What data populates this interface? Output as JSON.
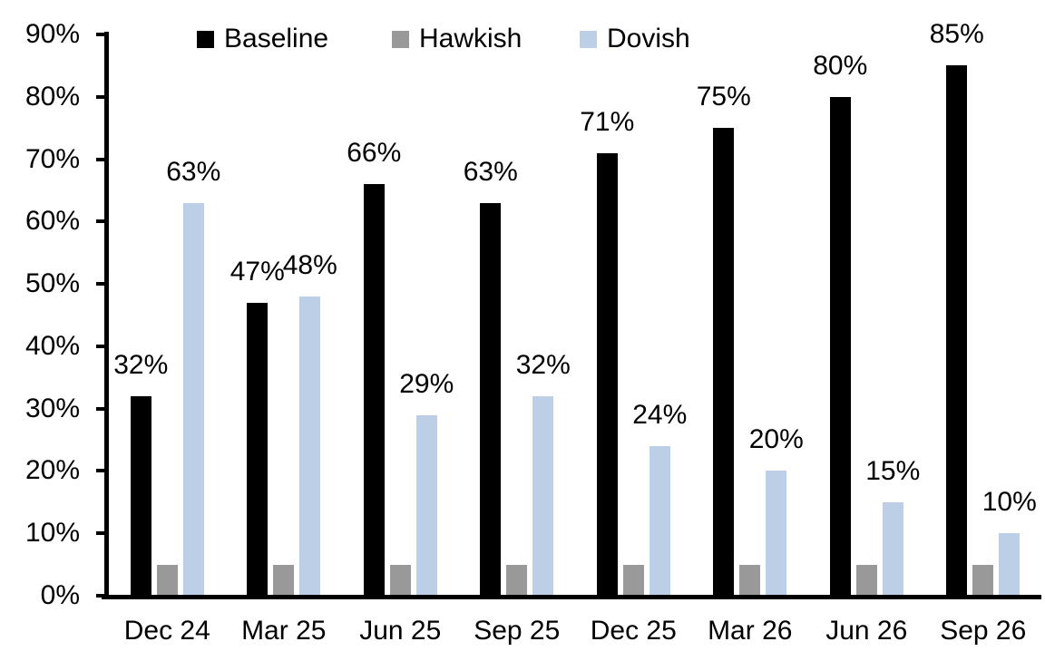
{
  "chart_data": {
    "type": "bar",
    "title": "",
    "xlabel": "",
    "ylabel": "",
    "categories": [
      "Dec 24",
      "Mar 25",
      "Jun 25",
      "Sep 25",
      "Dec 25",
      "Mar 26",
      "Jun 26",
      "Sep 26"
    ],
    "series": [
      {
        "name": "Baseline",
        "color": "#000000",
        "values": [
          32,
          47,
          66,
          63,
          71,
          75,
          80,
          85
        ],
        "data_labels": [
          "32%",
          "47%",
          "66%",
          "63%",
          "71%",
          "75%",
          "80%",
          "85%"
        ]
      },
      {
        "name": "Hawkish",
        "color": "#999999",
        "values": [
          5,
          5,
          5,
          5,
          5,
          5,
          5,
          5
        ],
        "data_labels": null
      },
      {
        "name": "Dovish",
        "color": "#BCCFE7",
        "values": [
          63,
          48,
          29,
          32,
          24,
          20,
          15,
          10
        ],
        "data_labels": [
          "63%",
          "48%",
          "29%",
          "32%",
          "24%",
          "20%",
          "15%",
          "10%"
        ]
      }
    ],
    "ylim": [
      0,
      90
    ],
    "ytick_step": 10,
    "ytick_labels": [
      "0%",
      "10%",
      "20%",
      "30%",
      "40%",
      "50%",
      "60%",
      "70%",
      "80%",
      "90%"
    ],
    "legend_position": "top",
    "grid": false,
    "axis_color": "#000000",
    "background_color": "#FFFFFF"
  }
}
